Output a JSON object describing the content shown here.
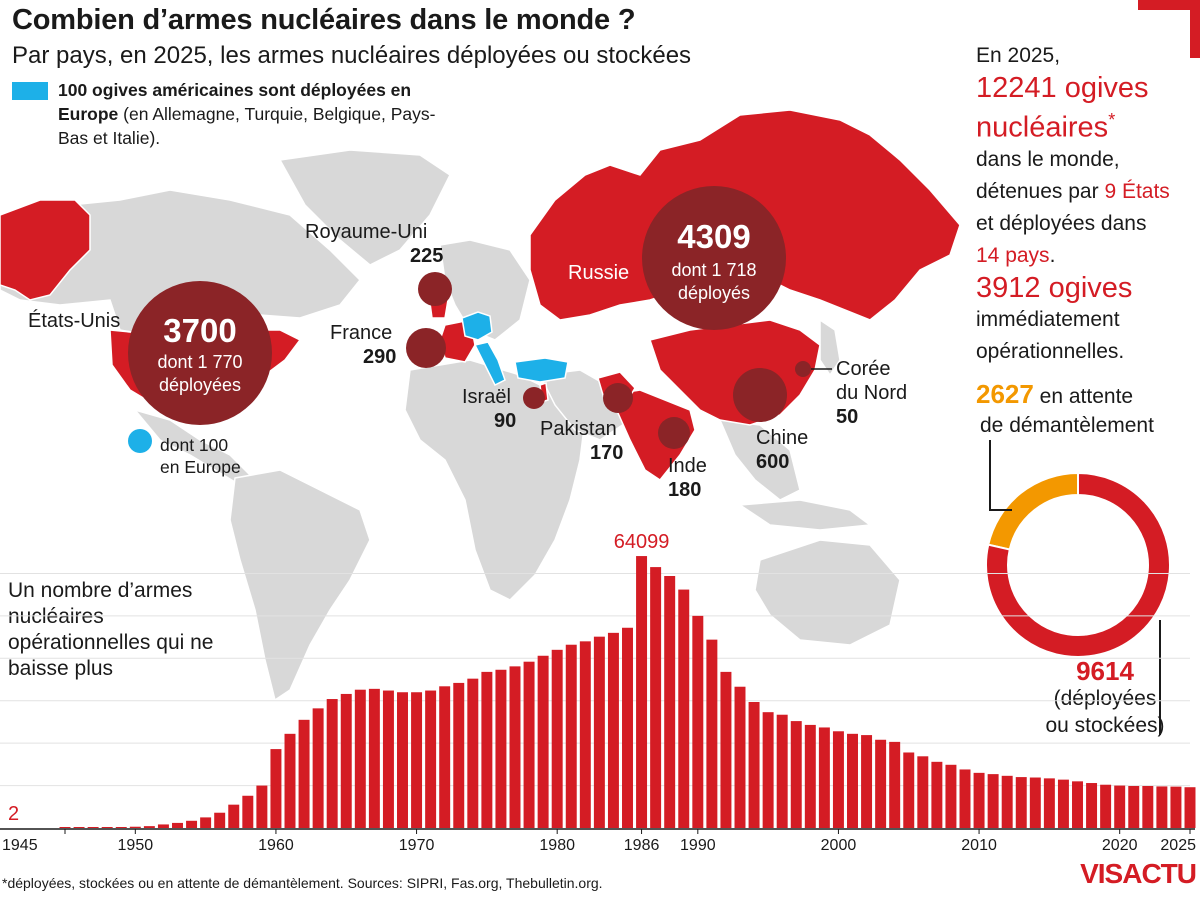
{
  "header": {
    "title": "Combien d’armes nucléaires dans le monde ?",
    "subtitle": "Par pays, en 2025, les armes nucléaires déployées ou stockées"
  },
  "legend": {
    "bold": "100 ogives américaines sont déployées en Europe",
    "rest": " (en Allemagne, Turquie, Belgique, Pays-Bas et Italie).",
    "color": "#1db0e8"
  },
  "colors": {
    "red": "#d41c24",
    "dark_red": "#8b2427",
    "blue": "#1db0e8",
    "orange": "#f39800",
    "land": "#d8d8d8"
  },
  "stats": {
    "l1": "En 2025,",
    "l2": "12241 ogives",
    "l3": "nucléaires",
    "l3_star": "*",
    "l4": "dans le monde,",
    "l5a": "détenues par ",
    "l5b": "9 États",
    "l6": "et déployées dans",
    "l7a": "14 pays",
    "l7b": ".",
    "l8": "3912 ogives",
    "l9": "immédiatement",
    "l10": "opérationnelles."
  },
  "countries": {
    "usa": {
      "name": "États-Unis",
      "total": "3700",
      "detail1": "dont 1 770",
      "detail2": "déployées"
    },
    "usa_europe": {
      "detail1": "dont 100",
      "detail2": "en Europe"
    },
    "russia": {
      "name": "Russie",
      "total": "4309",
      "detail1": "dont 1 718",
      "detail2": "déployés"
    },
    "uk": {
      "name": "Royaume-Uni",
      "value": "225"
    },
    "france": {
      "name": "France",
      "value": "290"
    },
    "israel": {
      "name": "Israël",
      "value": "90"
    },
    "pakistan": {
      "name": "Pakistan",
      "value": "170"
    },
    "india": {
      "name": "Inde",
      "value": "180"
    },
    "china": {
      "name": "Chine",
      "value": "600"
    },
    "north_korea": {
      "name1": "Corée",
      "name2": "du Nord",
      "value": "50"
    }
  },
  "donut": {
    "dismantle_value": "2627",
    "dismantle_text1": " en attente",
    "dismantle_text2": "de démantèlement",
    "stock_value": "9614",
    "stock_text1": "(déployées",
    "stock_text2": "ou stockées)",
    "slices": [
      {
        "label": "en attente de démantèlement",
        "value": 2627,
        "color": "#f39800"
      },
      {
        "label": "déployées ou stockées",
        "value": 9614,
        "color": "#d41c24"
      }
    ]
  },
  "chart_caption": "Un nombre d’armes nucléaires opérationnelles qui ne baisse plus",
  "chart_data": {
    "type": "bar",
    "x": [
      1945,
      1946,
      1947,
      1948,
      1949,
      1950,
      1951,
      1952,
      1953,
      1954,
      1955,
      1956,
      1957,
      1958,
      1959,
      1960,
      1961,
      1962,
      1963,
      1964,
      1965,
      1966,
      1967,
      1968,
      1969,
      1970,
      1971,
      1972,
      1973,
      1974,
      1975,
      1976,
      1977,
      1978,
      1979,
      1980,
      1981,
      1982,
      1983,
      1984,
      1985,
      1986,
      1987,
      1988,
      1989,
      1990,
      1991,
      1992,
      1993,
      1994,
      1995,
      1996,
      1997,
      1998,
      1999,
      2000,
      2001,
      2002,
      2003,
      2004,
      2005,
      2006,
      2007,
      2008,
      2009,
      2010,
      2011,
      2012,
      2013,
      2014,
      2015,
      2016,
      2017,
      2018,
      2019,
      2020,
      2021,
      2022,
      2023,
      2024,
      2025
    ],
    "values": [
      2,
      9,
      13,
      50,
      170,
      300,
      440,
      840,
      1200,
      1700,
      2500,
      3600,
      5500,
      7600,
      10000,
      18600,
      22200,
      25500,
      28200,
      30400,
      31600,
      32600,
      32800,
      32400,
      32000,
      32000,
      32400,
      33400,
      34200,
      35200,
      36800,
      37300,
      38100,
      39200,
      40600,
      42000,
      43200,
      44000,
      45100,
      46000,
      47200,
      64099,
      61500,
      59400,
      56200,
      50000,
      44400,
      36800,
      33300,
      29700,
      27300,
      26700,
      25200,
      24300,
      23700,
      22800,
      22200,
      21900,
      20800,
      20300,
      17800,
      16900,
      15600,
      14900,
      13800,
      13000,
      12700,
      12300,
      12000,
      11900,
      11700,
      11400,
      11000,
      10600,
      10200,
      10000,
      9900,
      9900,
      9800,
      9750,
      9614
    ],
    "labels": {
      "first": "2",
      "peak": "64099"
    },
    "x_ticks": [
      "1945",
      "1950",
      "1960",
      "1970",
      "1980",
      "1986",
      "1990",
      "2000",
      "2010",
      "2020",
      "2025"
    ],
    "ylim": [
      0,
      66000
    ],
    "grid": true
  },
  "footnote": "*déployées, stockées ou en attente de démantèlement. Sources: SIPRI, Fas.org, Thebulletin.org.",
  "logo": {
    "a": "VIS",
    "b": "ACTU"
  }
}
